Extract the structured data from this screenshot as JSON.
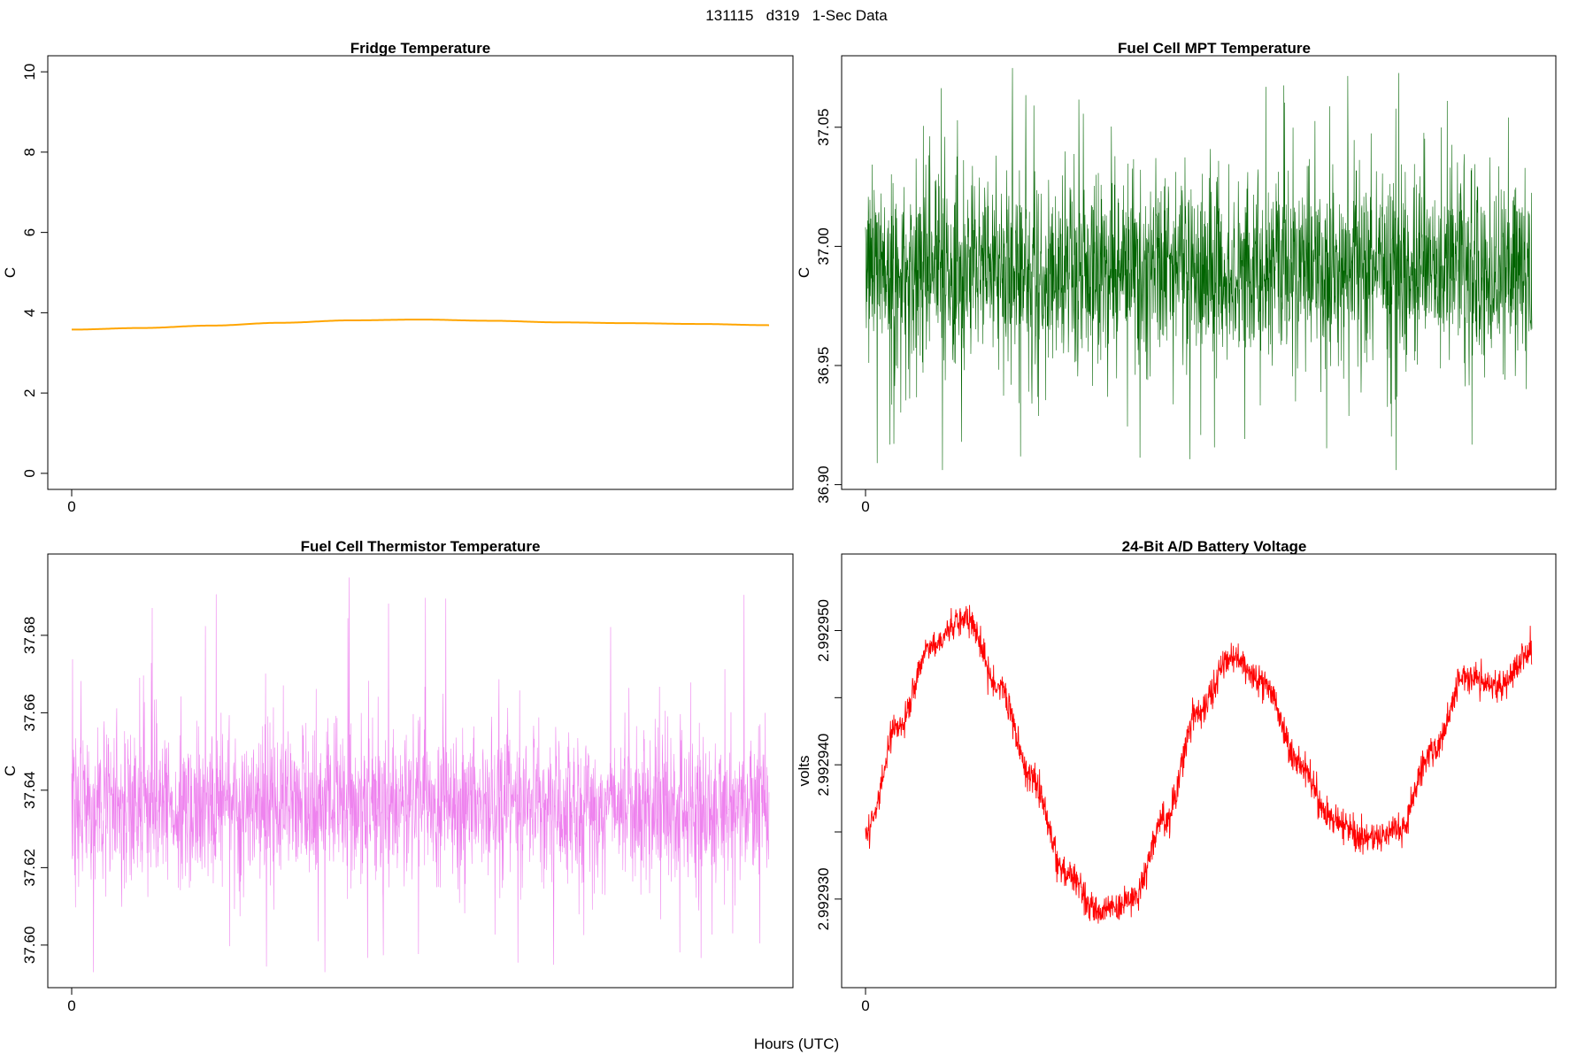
{
  "figure": {
    "suptitle": "131115   d319   1-Sec Data",
    "xlabel": "Hours (UTC)"
  },
  "chart_data": [
    {
      "type": "line",
      "title": "Fridge Temperature",
      "ylabel": "C",
      "xlabel": "",
      "color": "#FFA500",
      "xticks": [
        "0"
      ],
      "yticks": [
        "0",
        "2",
        "4",
        "6",
        "8",
        "10"
      ],
      "ylim": [
        -0.4,
        10.4
      ],
      "x": [
        0,
        0.1,
        0.2,
        0.3,
        0.4,
        0.5,
        0.6,
        0.7,
        0.8,
        0.9,
        1.0
      ],
      "series": [
        {
          "values": [
            3.58,
            3.62,
            3.68,
            3.75,
            3.81,
            3.83,
            3.8,
            3.76,
            3.74,
            3.72,
            3.69
          ]
        }
      ]
    },
    {
      "type": "line",
      "title": "Fuel Cell MPT Temperature",
      "ylabel": "C",
      "xlabel": "",
      "color": "#006400",
      "xticks": [
        "0"
      ],
      "yticks": [
        "36.90",
        "36.95",
        "37.00",
        "37.05"
      ],
      "ylim": [
        36.898,
        37.08
      ],
      "noise": {
        "mean": 36.99,
        "core_sd": 0.02,
        "min": 36.905,
        "max": 37.077
      }
    },
    {
      "type": "line",
      "title": "Fuel Cell Thermistor Temperature",
      "ylabel": "C",
      "xlabel": "",
      "color": "#EE82EE",
      "xticks": [
        "0"
      ],
      "yticks": [
        "37.60",
        "37.62",
        "37.64",
        "37.66",
        "37.68"
      ],
      "ylim": [
        37.589,
        37.701
      ],
      "noise": {
        "mean": 37.636,
        "core_sd": 0.01,
        "min": 37.593,
        "max": 37.695
      }
    },
    {
      "type": "line",
      "title": "24-Bit A/D Battery Voltage",
      "ylabel": "volts",
      "xlabel": "",
      "color": "#FF0000",
      "xticks": [
        "0"
      ],
      "yticks": [
        "2.992930",
        "2.992940",
        "2.992950"
      ],
      "ylim": [
        2.9929234,
        2.9929557
      ],
      "x": [
        0,
        0.05,
        0.1,
        0.15,
        0.2,
        0.25,
        0.3,
        0.35,
        0.4,
        0.45,
        0.5,
        0.55,
        0.6,
        0.65,
        0.7,
        0.75,
        0.8,
        0.85,
        0.9,
        0.95,
        1.0
      ],
      "series": [
        {
          "values": [
            2.992935,
            2.992943,
            2.992949,
            2.992951,
            2.992946,
            2.992939,
            2.992932,
            2.992929,
            2.99293,
            2.992936,
            2.992944,
            2.992948,
            2.992946,
            2.99294,
            2.992936,
            2.9929345,
            2.992935,
            2.992941,
            2.9929465,
            2.992946,
            2.9929485
          ]
        }
      ]
    }
  ]
}
